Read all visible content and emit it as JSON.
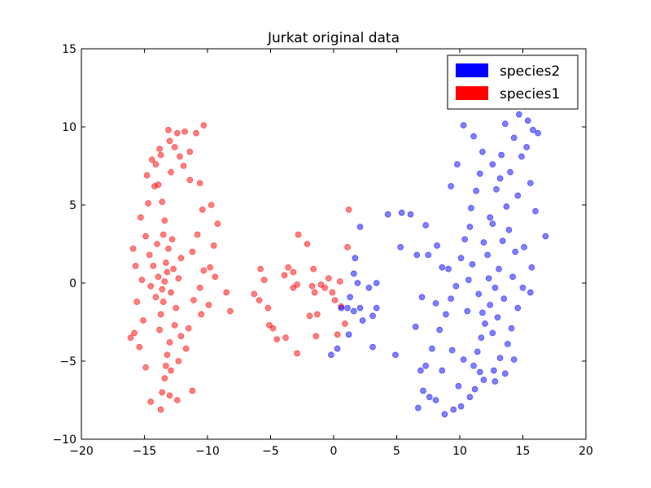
{
  "chart_data": {
    "type": "scatter",
    "title": "Jurkat original data",
    "xlabel": "",
    "ylabel": "",
    "xlim": [
      -20,
      20
    ],
    "ylim": [
      -10,
      15
    ],
    "xticks": [
      -20,
      -15,
      -10,
      -5,
      0,
      5,
      10,
      15,
      20
    ],
    "yticks": [
      -10,
      -5,
      0,
      5,
      10,
      15
    ],
    "grid": false,
    "legend_position": "top-right",
    "legend": [
      {
        "name": "species2",
        "color": "#0000ff"
      },
      {
        "name": "species1",
        "color": "#ff0000"
      }
    ],
    "series": [
      {
        "name": "species1",
        "color": "#ff0000",
        "opacity": 0.5,
        "points": [
          [
            -13.4,
            0.1
          ],
          [
            -13.6,
            -0.4
          ],
          [
            -13.2,
            0.7
          ],
          [
            -13.5,
            -1.2
          ],
          [
            -13.9,
            0.4
          ],
          [
            -12.9,
            -0.6
          ],
          [
            -13.3,
            1.3
          ],
          [
            -14.1,
            -0.9
          ],
          [
            -12.7,
            0.9
          ],
          [
            -13.7,
            -2.0
          ],
          [
            -13.1,
            2.2
          ],
          [
            -14.3,
            1.1
          ],
          [
            -12.5,
            -1.6
          ],
          [
            -13.5,
            3.1
          ],
          [
            -13.8,
            -3.0
          ],
          [
            -12.8,
            2.8
          ],
          [
            -14.5,
            -0.2
          ],
          [
            -12.3,
            0.3
          ],
          [
            -13.4,
            4.0
          ],
          [
            -13.0,
            -3.8
          ],
          [
            -14.0,
            2.5
          ],
          [
            -12.6,
            -2.7
          ],
          [
            -13.6,
            5.2
          ],
          [
            -13.2,
            -4.6
          ],
          [
            -14.6,
            1.8
          ],
          [
            -12.1,
            1.6
          ],
          [
            -13.9,
            6.3
          ],
          [
            -13.3,
            -5.3
          ],
          [
            -12.9,
            7.1
          ],
          [
            -13.7,
            8.2
          ],
          [
            -13.0,
            9.1
          ],
          [
            -12.4,
            9.6
          ],
          [
            -11.8,
            9.7
          ],
          [
            -10.3,
            10.1
          ],
          [
            -10.9,
            9.6
          ],
          [
            -13.1,
            9.8
          ],
          [
            -11.9,
            7.5
          ],
          [
            -11.4,
            6.6
          ],
          [
            -10.6,
            6.4
          ],
          [
            -10.4,
            4.7
          ],
          [
            -9.7,
            5.0
          ],
          [
            -9.2,
            3.8
          ],
          [
            -10.8,
            3.1
          ],
          [
            -9.5,
            2.4
          ],
          [
            -11.2,
            2.0
          ],
          [
            -9.8,
            1.0
          ],
          [
            -10.3,
            0.8
          ],
          [
            -9.4,
            0.4
          ],
          [
            -10.6,
            -0.3
          ],
          [
            -11.1,
            -1.1
          ],
          [
            -9.9,
            -1.4
          ],
          [
            -10.5,
            -2.0
          ],
          [
            -11.5,
            -2.9
          ],
          [
            -12.1,
            -3.4
          ],
          [
            -11.7,
            -4.2
          ],
          [
            -12.3,
            -5.0
          ],
          [
            -12.9,
            -5.6
          ],
          [
            -13.4,
            -6.1
          ],
          [
            -13.0,
            -7.2
          ],
          [
            -13.6,
            -7.0
          ],
          [
            -14.5,
            -7.6
          ],
          [
            -13.7,
            -8.1
          ],
          [
            -12.4,
            -7.5
          ],
          [
            -11.2,
            -6.9
          ],
          [
            -14.9,
            -5.4
          ],
          [
            -15.4,
            -4.1
          ],
          [
            -15.8,
            -3.2
          ],
          [
            -16.1,
            -3.5
          ],
          [
            -15.1,
            -2.4
          ],
          [
            -15.6,
            -1.2
          ],
          [
            -15.2,
            0.2
          ],
          [
            -15.7,
            1.1
          ],
          [
            -15.9,
            2.2
          ],
          [
            -14.9,
            3.0
          ],
          [
            -15.3,
            4.2
          ],
          [
            -14.7,
            5.1
          ],
          [
            -14.2,
            6.2
          ],
          [
            -14.8,
            6.9
          ],
          [
            -14.1,
            7.6
          ],
          [
            -13.8,
            8.6
          ],
          [
            -14.4,
            7.9
          ],
          [
            -12.6,
            8.7
          ],
          [
            -12.2,
            8.1
          ],
          [
            -11.4,
            8.4
          ],
          [
            -8.2,
            -1.8
          ],
          [
            -8.5,
            -0.6
          ],
          [
            -6.3,
            -0.7
          ],
          [
            -5.8,
            0.9
          ],
          [
            -5.5,
            0.2
          ],
          [
            -5.9,
            -1.1
          ],
          [
            -5.2,
            -1.6
          ],
          [
            -4.8,
            -2.9
          ],
          [
            -5.1,
            -2.7
          ],
          [
            -4.5,
            -3.6
          ],
          [
            -3.8,
            -3.5
          ],
          [
            -3.9,
            0.5
          ],
          [
            -3.2,
            0.7
          ],
          [
            -3.6,
            1.0
          ],
          [
            -3.2,
            -0.3
          ],
          [
            -2.9,
            -0.1
          ],
          [
            -2.8,
            3.1
          ],
          [
            -2.1,
            2.5
          ],
          [
            -1.6,
            0.9
          ],
          [
            -1.5,
            -0.6
          ],
          [
            -1.7,
            -0.2
          ],
          [
            -1.9,
            -2.1
          ],
          [
            -1.3,
            -2.0
          ],
          [
            -1.0,
            -0.1
          ],
          [
            -0.7,
            -0.3
          ],
          [
            -0.4,
            0.3
          ],
          [
            -0.1,
            -0.6
          ],
          [
            0.5,
            0.1
          ],
          [
            0.6,
            -1.5
          ],
          [
            0.9,
            -2.6
          ],
          [
            1.1,
            2.3
          ],
          [
            1.2,
            4.7
          ],
          [
            -2.9,
            -4.5
          ],
          [
            -1.4,
            -3.4
          ],
          [
            0.3,
            -3.3
          ],
          [
            0.1,
            -1.1
          ]
        ]
      },
      {
        "name": "species2",
        "color": "#0000ff",
        "opacity": 0.5,
        "points": [
          [
            12.0,
            -2.6
          ],
          [
            12.4,
            -1.4
          ],
          [
            11.7,
            -3.5
          ],
          [
            12.8,
            -0.3
          ],
          [
            11.4,
            -4.4
          ],
          [
            13.1,
            0.9
          ],
          [
            12.2,
            1.8
          ],
          [
            11.1,
            -5.3
          ],
          [
            13.4,
            2.7
          ],
          [
            12.6,
            3.8
          ],
          [
            13.7,
            4.9
          ],
          [
            12.9,
            6.0
          ],
          [
            14.0,
            7.1
          ],
          [
            13.3,
            8.2
          ],
          [
            14.3,
            9.3
          ],
          [
            13.6,
            10.2
          ],
          [
            14.7,
            10.8
          ],
          [
            14.9,
            11.4
          ],
          [
            15.4,
            10.4
          ],
          [
            15.8,
            9.8
          ],
          [
            16.2,
            9.6
          ],
          [
            15.3,
            8.7
          ],
          [
            15.6,
            6.4
          ],
          [
            16.0,
            4.6
          ],
          [
            16.8,
            3.0
          ],
          [
            15.1,
            2.3
          ],
          [
            15.7,
            1.0
          ],
          [
            15.0,
            -0.3
          ],
          [
            15.6,
            -0.6
          ],
          [
            14.6,
            -1.6
          ],
          [
            14.1,
            -2.9
          ],
          [
            13.8,
            -3.9
          ],
          [
            13.2,
            -4.8
          ],
          [
            12.7,
            -5.6
          ],
          [
            11.9,
            -6.2
          ],
          [
            11.2,
            -6.8
          ],
          [
            10.8,
            -7.3
          ],
          [
            10.1,
            -7.9
          ],
          [
            9.5,
            -8.1
          ],
          [
            8.8,
            -8.4
          ],
          [
            8.1,
            -7.5
          ],
          [
            7.6,
            -7.3
          ],
          [
            7.1,
            -6.9
          ],
          [
            6.7,
            -8.0
          ],
          [
            6.9,
            -5.6
          ],
          [
            7.3,
            -5.3
          ],
          [
            7.8,
            -4.2
          ],
          [
            8.4,
            -3.0
          ],
          [
            8.9,
            -2.0
          ],
          [
            9.3,
            -1.0
          ],
          [
            9.7,
            -0.2
          ],
          [
            9.1,
            0.9
          ],
          [
            10.1,
            1.6
          ],
          [
            10.4,
            2.8
          ],
          [
            10.8,
            3.6
          ],
          [
            10.9,
            4.8
          ],
          [
            11.3,
            5.9
          ],
          [
            11.6,
            7.0
          ],
          [
            11.8,
            8.4
          ],
          [
            11.1,
            9.4
          ],
          [
            10.3,
            10.1
          ],
          [
            9.8,
            7.6
          ],
          [
            9.3,
            6.2
          ],
          [
            7.3,
            3.7
          ],
          [
            6.1,
            4.4
          ],
          [
            5.4,
            4.5
          ],
          [
            4.3,
            4.4
          ],
          [
            2.1,
            3.6
          ],
          [
            5.3,
            2.3
          ],
          [
            6.6,
            1.8
          ],
          [
            7.5,
            1.8
          ],
          [
            8.2,
            2.4
          ],
          [
            8.6,
            1.0
          ],
          [
            1.7,
            1.6
          ],
          [
            1.9,
            0.0
          ],
          [
            1.3,
            -0.9
          ],
          [
            1.6,
            0.6
          ],
          [
            2.1,
            -1.6
          ],
          [
            2.8,
            -0.3
          ],
          [
            3.4,
            0.0
          ],
          [
            3.4,
            -1.6
          ],
          [
            3.1,
            -2.1
          ],
          [
            0.6,
            -1.6
          ],
          [
            1.1,
            -1.6
          ],
          [
            1.6,
            -1.8
          ],
          [
            2.3,
            -2.4
          ],
          [
            3.1,
            -4.1
          ],
          [
            4.9,
            -4.6
          ],
          [
            1.2,
            -3.3
          ],
          [
            0.3,
            -4.2
          ],
          [
            -0.2,
            -4.6
          ],
          [
            7.0,
            -0.9
          ],
          [
            6.5,
            -2.8
          ],
          [
            8.1,
            -1.3
          ],
          [
            10.6,
            -1.8
          ],
          [
            11.5,
            -0.7
          ],
          [
            12.3,
            0.3
          ],
          [
            11.0,
            1.2
          ],
          [
            12.6,
            -3.2
          ],
          [
            13.0,
            -2.2
          ],
          [
            11.8,
            -1.9
          ],
          [
            14.2,
            0.4
          ],
          [
            14.4,
            2.0
          ],
          [
            13.9,
            3.4
          ],
          [
            12.4,
            4.2
          ],
          [
            14.6,
            5.6
          ],
          [
            13.2,
            6.7
          ],
          [
            12.6,
            7.6
          ],
          [
            14.9,
            8.1
          ],
          [
            11.6,
            -5.7
          ],
          [
            12.8,
            -6.3
          ],
          [
            10.3,
            -4.9
          ],
          [
            9.4,
            -4.3
          ],
          [
            8.6,
            -5.6
          ],
          [
            9.9,
            -6.6
          ],
          [
            13.6,
            -5.8
          ],
          [
            14.3,
            -4.9
          ],
          [
            11.9,
            2.6
          ],
          [
            10.7,
            0.2
          ],
          [
            13.5,
            -1.0
          ]
        ]
      }
    ]
  }
}
